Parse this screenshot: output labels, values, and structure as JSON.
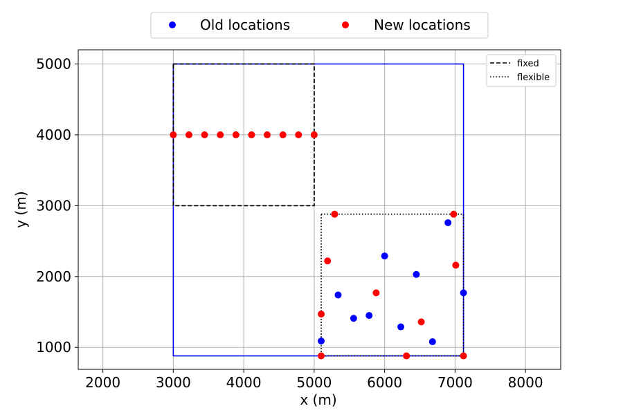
{
  "chart_data": {
    "type": "scatter",
    "xlabel": "x (m)",
    "ylabel": "y (m)",
    "xlim": [
      1650,
      8500
    ],
    "ylim": [
      690,
      5200
    ],
    "xticks": [
      2000,
      3000,
      4000,
      5000,
      6000,
      7000,
      8000
    ],
    "yticks": [
      1000,
      2000,
      3000,
      4000,
      5000
    ],
    "grid": true,
    "legend_placement": "above plot, centered",
    "series": [
      {
        "name": "Old locations",
        "color": "#0000ff",
        "points": [
          [
            5100,
            1090
          ],
          [
            5340,
            1740
          ],
          [
            5560,
            1410
          ],
          [
            5780,
            1450
          ],
          [
            6000,
            2290
          ],
          [
            6230,
            1290
          ],
          [
            6450,
            2030
          ],
          [
            6680,
            1080
          ],
          [
            6900,
            2760
          ],
          [
            7120,
            1770
          ]
        ]
      },
      {
        "name": "New locations",
        "color": "#ff0000",
        "points": [
          [
            3000,
            4000
          ],
          [
            3222,
            4000
          ],
          [
            3444,
            4000
          ],
          [
            3667,
            4000
          ],
          [
            3889,
            4000
          ],
          [
            4111,
            4000
          ],
          [
            4333,
            4000
          ],
          [
            4556,
            4000
          ],
          [
            4778,
            4000
          ],
          [
            5000,
            4000
          ],
          [
            5100,
            880
          ],
          [
            5100,
            1470
          ],
          [
            5190,
            2220
          ],
          [
            5290,
            2880
          ],
          [
            5880,
            1770
          ],
          [
            6310,
            880
          ],
          [
            6520,
            1360
          ],
          [
            6980,
            2880
          ],
          [
            7010,
            2160
          ],
          [
            7120,
            880
          ]
        ]
      }
    ],
    "boundaries": [
      {
        "name": "fixed",
        "style": "dashed",
        "color": "#000000",
        "x": [
          3000,
          5000
        ],
        "y": [
          3000,
          5000
        ]
      },
      {
        "name": "flexible",
        "style": "dotted",
        "color": "#000000",
        "x": [
          5100,
          7120
        ],
        "y": [
          880,
          2880
        ]
      },
      {
        "name": "",
        "style": "solid",
        "color": "#0000ff",
        "x": [
          3000,
          7120
        ],
        "y": [
          880,
          5000
        ]
      }
    ],
    "legend_lines": [
      "fixed",
      "flexible"
    ]
  }
}
